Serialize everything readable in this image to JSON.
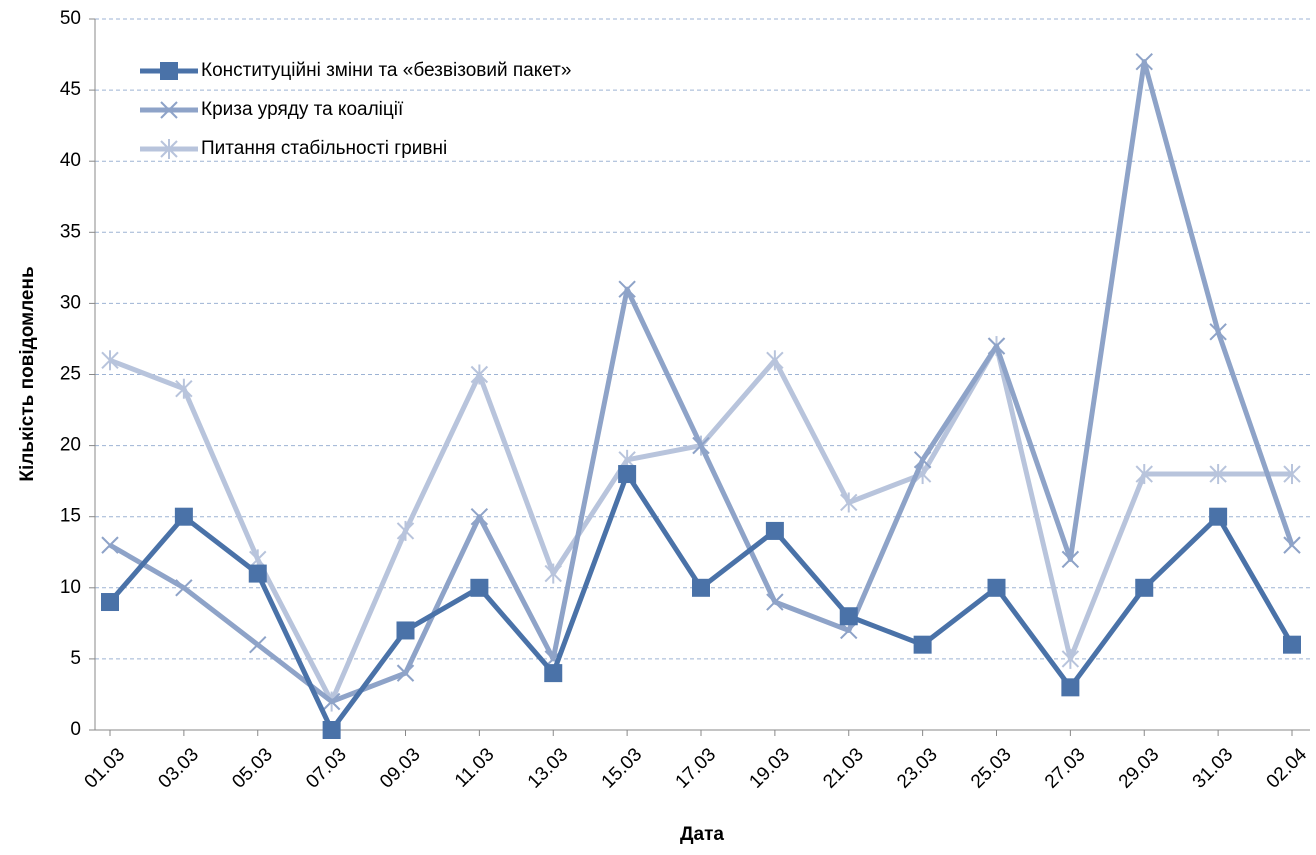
{
  "chart_data": {
    "type": "line",
    "ylabel": "Кількість  повідомлень",
    "xlabel": "Дата",
    "categories": [
      "01.03",
      "03.03",
      "05.03",
      "07.03",
      "09.03",
      "11.03",
      "13.03",
      "15.03",
      "17.03",
      "19.03",
      "21.03",
      "23.03",
      "25.03",
      "27.03",
      "29.03",
      "31.03",
      "02.04"
    ],
    "series": [
      {
        "name": "Конституційні зміни та «безвізовий пакет»",
        "color": "#4a72a8",
        "marker": "square",
        "values": [
          9,
          15,
          11,
          0,
          7,
          10,
          4,
          18,
          10,
          14,
          8,
          6,
          10,
          3,
          10,
          15,
          6
        ]
      },
      {
        "name": "Криза уряду та коаліції",
        "color": "#8ea3c8",
        "marker": "x",
        "values": [
          13,
          10,
          6,
          2,
          4,
          15,
          5,
          31,
          20,
          9,
          7,
          19,
          27,
          12,
          47,
          28,
          13
        ]
      },
      {
        "name": "Питання  стабільності гривні",
        "color": "#b8c4dc",
        "marker": "star",
        "values": [
          26,
          24,
          12,
          2,
          14,
          25,
          11,
          19,
          20,
          26,
          16,
          18,
          27,
          5,
          18,
          18,
          18
        ]
      }
    ],
    "ylim": [
      0,
      50
    ],
    "yticks": [
      0,
      5,
      10,
      15,
      20,
      25,
      30,
      35,
      40,
      45,
      50
    ],
    "grid": true,
    "legend": "upper-left"
  }
}
